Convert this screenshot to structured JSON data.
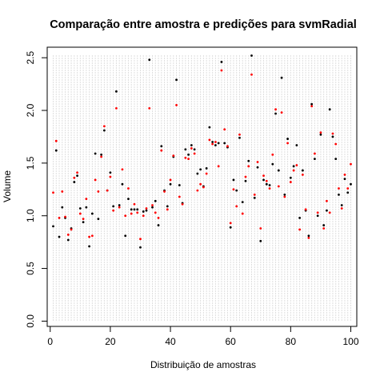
{
  "chart_data": {
    "type": "scatter",
    "title": "Comparação entre amostra e predições para svmRadial",
    "xlabel": "Distribuição de amostras",
    "ylabel": "Volume",
    "xlim": [
      -1,
      102
    ],
    "ylim": [
      -0.05,
      2.6
    ],
    "x_ticks": [
      0,
      20,
      40,
      60,
      80,
      100
    ],
    "x_tick_labels": [
      "0",
      "20",
      "40",
      "60",
      "80",
      "100"
    ],
    "y_ticks": [
      0.0,
      0.5,
      1.0,
      1.5,
      2.0,
      2.5
    ],
    "y_tick_labels": [
      "0.0",
      "0.5",
      "1.0",
      "1.5",
      "2.0",
      "2.5"
    ],
    "grid": "vertical dotted gray line at each sample index 1-100, from 0 to 2.52",
    "colors": {
      "sample": "#000000",
      "prediction": "#ff0000",
      "grid": "#bebebe"
    },
    "x": [
      1,
      2,
      3,
      4,
      5,
      6,
      7,
      8,
      9,
      10,
      11,
      12,
      13,
      14,
      15,
      16,
      17,
      18,
      19,
      20,
      21,
      22,
      23,
      24,
      25,
      26,
      27,
      28,
      29,
      30,
      31,
      32,
      33,
      34,
      35,
      36,
      37,
      38,
      39,
      40,
      41,
      42,
      43,
      44,
      45,
      46,
      47,
      48,
      49,
      50,
      51,
      52,
      53,
      54,
      55,
      56,
      57,
      58,
      59,
      60,
      61,
      62,
      63,
      64,
      65,
      66,
      67,
      68,
      69,
      70,
      71,
      72,
      73,
      74,
      75,
      76,
      77,
      78,
      79,
      80,
      81,
      82,
      83,
      84,
      85,
      86,
      87,
      88,
      89,
      90,
      91,
      92,
      93,
      94,
      95,
      96,
      97,
      98,
      99,
      100
    ],
    "series": [
      {
        "color": "#000000",
        "values": [
          0.9,
          1.62,
          0.8,
          1.08,
          0.98,
          0.77,
          0.88,
          1.32,
          1.38,
          1.07,
          0.94,
          1.08,
          0.71,
          1.02,
          1.59,
          0.97,
          1.58,
          1.81,
          1.24,
          1.41,
          1.09,
          2.18,
          1.1,
          1.3,
          0.81,
          1.16,
          1.06,
          1.06,
          1.06,
          0.7,
          1.04,
          1.05,
          2.48,
          1.08,
          1.14,
          0.91,
          1.66,
          1.24,
          1.09,
          1.3,
          1.56,
          2.29,
          1.29,
          1.12,
          1.63,
          1.58,
          1.67,
          1.63,
          1.4,
          1.44,
          1.28,
          1.45,
          1.84,
          1.7,
          1.67,
          1.69,
          2.46,
          1.69,
          1.65,
          0.89,
          1.34,
          1.24,
          1.74,
          1.13,
          1.33,
          1.52,
          2.52,
          1.17,
          1.46,
          0.76,
          1.34,
          1.3,
          1.29,
          1.49,
          1.97,
          1.43,
          2.31,
          1.2,
          1.73,
          1.36,
          1.47,
          1.67,
          0.98,
          1.43,
          1.05,
          0.81,
          2.06,
          1.54,
          1.0,
          1.77,
          0.91,
          1.05,
          2.01,
          1.75,
          1.54,
          1.2,
          1.1,
          1.35,
          1.22,
          1.3
        ]
      },
      {
        "color": "#ff0000",
        "values": [
          1.22,
          1.71,
          0.98,
          1.23,
          0.99,
          0.82,
          0.87,
          1.36,
          1.41,
          1.02,
          0.97,
          1.16,
          0.8,
          0.81,
          1.34,
          1.23,
          1.56,
          1.85,
          1.24,
          1.37,
          1.05,
          2.02,
          1.08,
          1.44,
          1.0,
          1.26,
          1.02,
          1.11,
          1.03,
          0.78,
          1.0,
          1.07,
          2.02,
          1.1,
          1.03,
          0.98,
          1.62,
          1.23,
          1.06,
          1.34,
          1.57,
          2.05,
          1.18,
          1.11,
          1.55,
          1.54,
          1.64,
          1.59,
          1.24,
          1.3,
          1.27,
          1.4,
          1.72,
          1.68,
          1.7,
          1.47,
          2.38,
          1.82,
          1.66,
          0.93,
          1.25,
          1.09,
          1.77,
          1.02,
          1.37,
          1.47,
          2.34,
          1.2,
          1.51,
          0.88,
          1.38,
          1.33,
          1.26,
          1.58,
          2.01,
          1.28,
          1.98,
          1.18,
          1.69,
          1.32,
          1.43,
          1.48,
          0.87,
          1.39,
          1.06,
          0.79,
          2.04,
          1.59,
          1.03,
          1.79,
          0.88,
          1.14,
          1.03,
          1.78,
          1.68,
          1.26,
          1.07,
          1.39,
          1.26,
          1.49
        ]
      }
    ]
  }
}
